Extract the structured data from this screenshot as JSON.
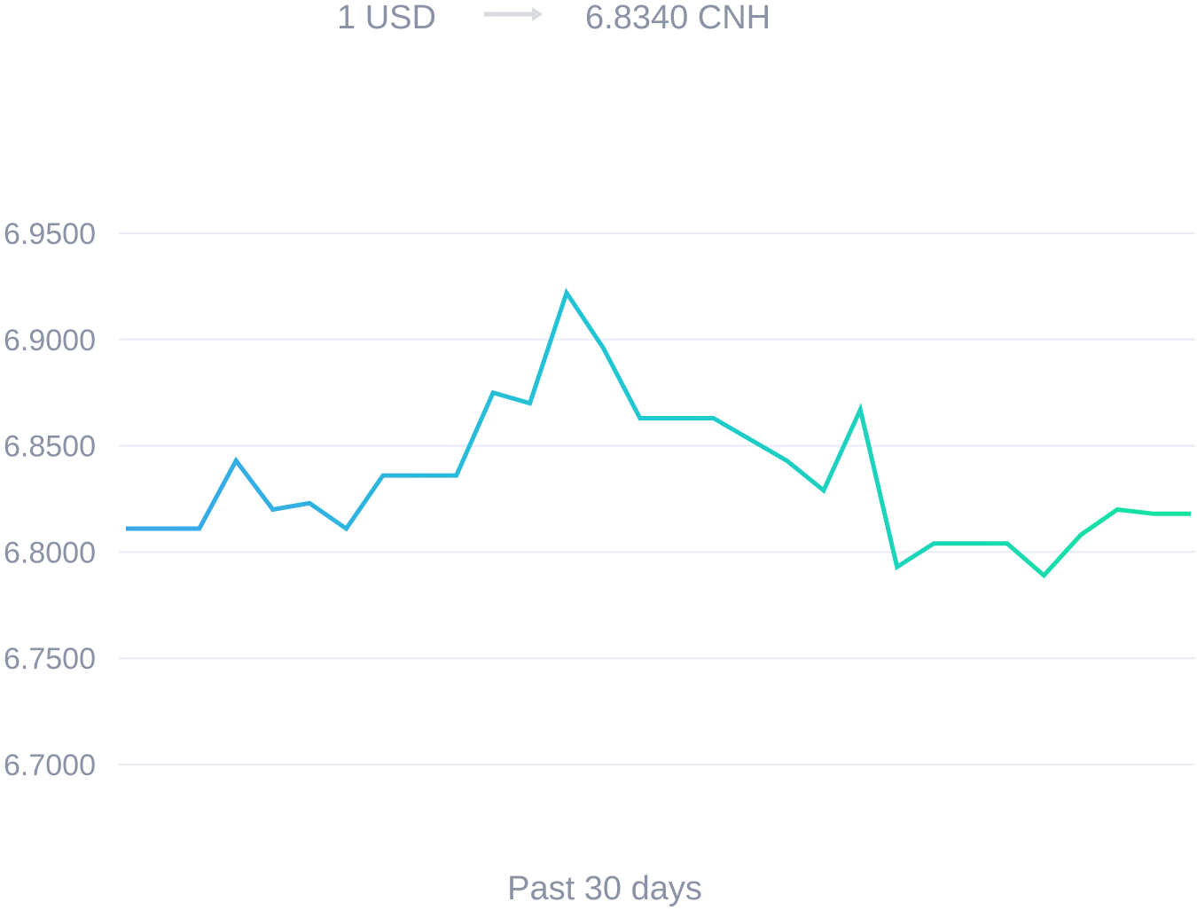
{
  "header": {
    "from_amount": "1 USD",
    "to_amount": "6.8340 CNH",
    "arrow_icon": "arrow-right-icon"
  },
  "footer": {
    "period_label": "Past 30 days"
  },
  "colors": {
    "line_start": "#3aa6ea",
    "line_mid": "#22c5d3",
    "line_end": "#15e4a0",
    "grid": "#e8eef4",
    "text": "#8a93a6",
    "arrow": "#d7dade"
  },
  "chart_data": {
    "type": "line",
    "title": "",
    "xlabel": "Past 30 days",
    "ylabel": "",
    "ylim": [
      6.7,
      6.95
    ],
    "ytick_labels": [
      "6.9500",
      "6.9000",
      "6.8500",
      "6.8000",
      "6.7500",
      "6.7000"
    ],
    "yticks": [
      6.95,
      6.9,
      6.85,
      6.8,
      6.75,
      6.7
    ],
    "grid": true,
    "legend": "none",
    "x": [
      0,
      1,
      2,
      3,
      4,
      5,
      6,
      7,
      8,
      9,
      10,
      11,
      12,
      13,
      14,
      15,
      16,
      17,
      18,
      19,
      20,
      21,
      22,
      23,
      24,
      25,
      26,
      27,
      28,
      29
    ],
    "series": [
      {
        "values": [
          6.811,
          6.811,
          6.811,
          6.843,
          6.82,
          6.823,
          6.811,
          6.836,
          6.836,
          6.836,
          6.875,
          6.87,
          6.922,
          6.896,
          6.863,
          6.863,
          6.863,
          6.853,
          6.843,
          6.829,
          6.867,
          6.793,
          6.804,
          6.804,
          6.804,
          6.789,
          6.808,
          6.82,
          6.818,
          6.818
        ]
      }
    ]
  }
}
